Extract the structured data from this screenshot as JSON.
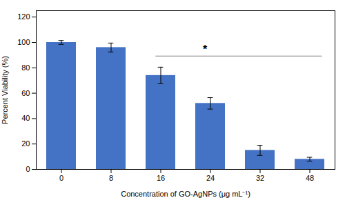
{
  "chart_data": {
    "type": "bar",
    "categories": [
      "0",
      "8",
      "16",
      "24",
      "32",
      "48"
    ],
    "values": [
      100,
      96,
      74,
      52,
      15,
      8
    ],
    "errors": [
      1.5,
      3.5,
      6.5,
      4.5,
      4.0,
      1.5
    ],
    "color": "#4472C4",
    "xlabel": "Concentration of GO-AgNPs (μg mL⁻¹)",
    "ylabel": "Percent Viability (%)",
    "ylim": [
      0,
      125
    ],
    "yticks": [
      0,
      20,
      40,
      60,
      80,
      100,
      120
    ],
    "grid": false,
    "annotations": [
      {
        "text": "*",
        "y": 89,
        "from": "16",
        "to": "48"
      }
    ]
  }
}
